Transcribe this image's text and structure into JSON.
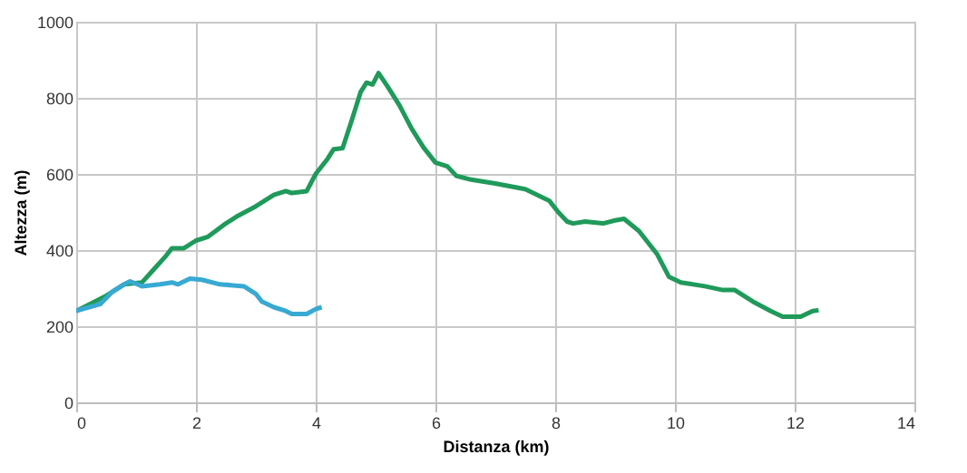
{
  "chart_data": {
    "type": "line",
    "xlabel": "Distanza (km)",
    "ylabel": "Altezza (m)",
    "xlim": [
      0,
      14
    ],
    "xticks": [
      0,
      2,
      4,
      6,
      8,
      10,
      12,
      14
    ],
    "ylim": [
      0,
      1000
    ],
    "yticks": [
      0,
      200,
      400,
      600,
      800,
      1000
    ],
    "grid": true,
    "line_style": "solid",
    "series": [
      {
        "color": "#1f9a5a",
        "x": [
          0,
          0.5,
          0.8,
          1.1,
          1.3,
          1.5,
          1.6,
          1.8,
          2,
          2.2,
          2.5,
          2.7,
          3,
          3.3,
          3.5,
          3.6,
          3.85,
          4,
          4.2,
          4.3,
          4.45,
          4.6,
          4.75,
          4.85,
          4.95,
          5.05,
          5.2,
          5.4,
          5.6,
          5.8,
          6,
          6.2,
          6.35,
          6.6,
          7,
          7.5,
          7.9,
          8.05,
          8.2,
          8.3,
          8.5,
          8.8,
          9,
          9.15,
          9.4,
          9.7,
          9.9,
          10.1,
          10.5,
          10.8,
          11,
          11.3,
          11.6,
          11.8,
          12.1,
          12.3,
          12.4
        ],
        "values": [
          240,
          280,
          310,
          315,
          350,
          385,
          405,
          405,
          425,
          435,
          470,
          490,
          515,
          545,
          555,
          550,
          555,
          600,
          640,
          665,
          668,
          740,
          815,
          840,
          835,
          865,
          830,
          780,
          720,
          670,
          630,
          620,
          595,
          585,
          575,
          560,
          530,
          500,
          475,
          470,
          475,
          470,
          478,
          482,
          450,
          390,
          330,
          315,
          305,
          295,
          295,
          265,
          240,
          225,
          225,
          240,
          242
        ]
      },
      {
        "color": "#38a9d3",
        "x": [
          0,
          0.4,
          0.6,
          0.8,
          0.9,
          1.1,
          1.4,
          1.6,
          1.7,
          1.9,
          2.1,
          2.4,
          2.8,
          3,
          3.1,
          3.3,
          3.5,
          3.6,
          3.85,
          4,
          4.1
        ],
        "values": [
          240,
          258,
          290,
          310,
          318,
          305,
          310,
          315,
          310,
          325,
          322,
          310,
          305,
          285,
          265,
          250,
          240,
          232,
          232,
          245,
          250
        ]
      }
    ]
  }
}
